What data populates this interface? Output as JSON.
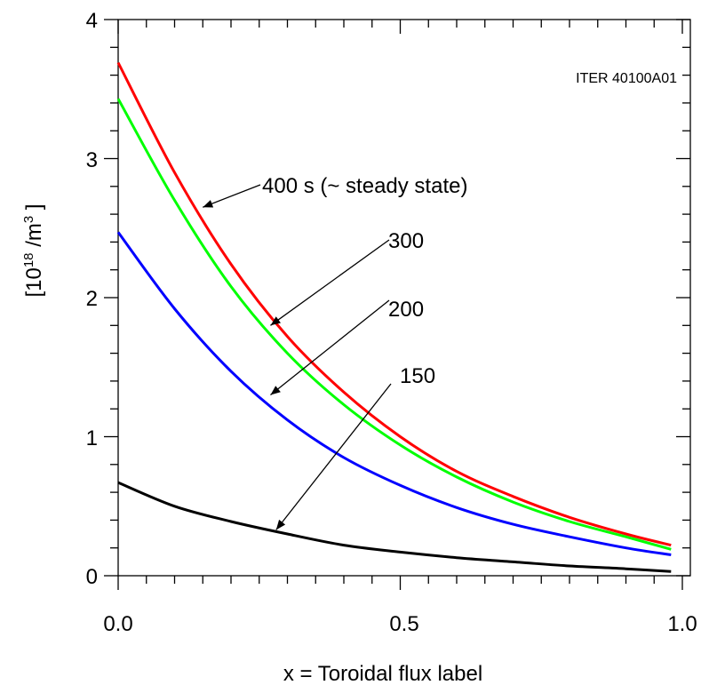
{
  "chart_data": {
    "type": "line",
    "title": "",
    "xlabel": "x = Toroidal flux label",
    "ylabel_parts": {
      "base": "[10",
      "exp1": "18",
      "mid": " /m",
      "exp2": "3",
      "end": " ]"
    },
    "xlim": [
      0,
      1
    ],
    "ylim": [
      0,
      4
    ],
    "xticks": [
      0,
      0.5,
      1
    ],
    "xtick_labels": [
      "0.0",
      "0.5",
      "1.0"
    ],
    "yticks": [
      0,
      1,
      2,
      3,
      4
    ],
    "ytick_labels": [
      "0",
      "1",
      "2",
      "3",
      "4"
    ],
    "grid": false,
    "legend": "none",
    "watermark": "ITER 40100A01",
    "x": [
      0.0,
      0.1,
      0.2,
      0.3,
      0.4,
      0.5,
      0.6,
      0.7,
      0.8,
      0.9,
      0.98
    ],
    "series": [
      {
        "color": "#ff0000",
        "values": [
          3.69,
          2.9,
          2.24,
          1.72,
          1.32,
          1.0,
          0.75,
          0.57,
          0.42,
          0.3,
          0.22
        ]
      },
      {
        "color": "#00ff00",
        "values": [
          3.43,
          2.7,
          2.08,
          1.6,
          1.23,
          0.94,
          0.71,
          0.53,
          0.39,
          0.28,
          0.19
        ]
      },
      {
        "color": "#0000ff",
        "values": [
          2.47,
          1.92,
          1.47,
          1.12,
          0.85,
          0.65,
          0.49,
          0.37,
          0.28,
          0.2,
          0.15
        ]
      },
      {
        "color": "#000000",
        "values": [
          0.67,
          0.5,
          0.39,
          0.3,
          0.22,
          0.17,
          0.13,
          0.1,
          0.07,
          0.05,
          0.03
        ]
      }
    ],
    "annotations": [
      {
        "text": "400 s (~ steady state)",
        "target": [
          0.15,
          2.65
        ]
      },
      {
        "text": "300",
        "target": [
          0.27,
          1.8
        ]
      },
      {
        "text": "200",
        "target": [
          0.27,
          1.3
        ]
      },
      {
        "text": "150",
        "target": [
          0.28,
          0.33
        ]
      }
    ]
  }
}
